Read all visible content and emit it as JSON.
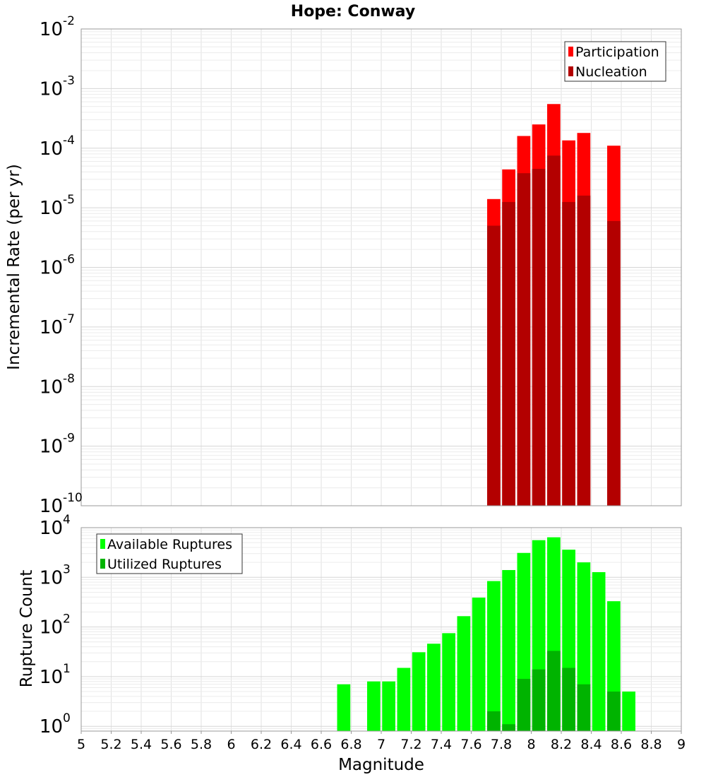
{
  "chart_data": [
    {
      "type": "bar",
      "title": "Hope: Conway",
      "xlabel": "Magnitude",
      "ylabel": "Incremental Rate (per yr)",
      "yscale": "log",
      "ylim": [
        1e-10,
        0.01
      ],
      "xlim": [
        5,
        9
      ],
      "grid": true,
      "legend_placement": "top-right",
      "y_tick_exponents": [
        "-10",
        "-9",
        "-8",
        "-7",
        "-6",
        "-5",
        "-4",
        "-3",
        "-2"
      ],
      "x": [
        7.75,
        7.85,
        7.95,
        8.05,
        8.15,
        8.25,
        8.35,
        8.55
      ],
      "series": [
        {
          "name": "Participation",
          "color": "#ff0000",
          "values": [
            1.4e-05,
            4.4e-05,
            0.00016,
            0.00025,
            0.00055,
            0.000135,
            0.00018,
            0.00011
          ]
        },
        {
          "name": "Nucleation",
          "color": "#b30000",
          "values": [
            5e-06,
            1.25e-05,
            3.8e-05,
            4.5e-05,
            7.5e-05,
            1.25e-05,
            1.6e-05,
            6e-06
          ]
        }
      ]
    },
    {
      "type": "bar",
      "title": "",
      "xlabel": "Magnitude",
      "ylabel": "Rupture Count",
      "yscale": "log",
      "ylim": [
        0.8,
        10000
      ],
      "xlim": [
        5,
        9
      ],
      "grid": true,
      "legend_placement": "top-left",
      "y_tick_exponents": [
        "0",
        "1",
        "2",
        "3",
        "4"
      ],
      "x_tick_labels": [
        "5",
        "5.2",
        "5.4",
        "5.6",
        "5.8",
        "6",
        "6.2",
        "6.4",
        "6.6",
        "6.8",
        "7",
        "7.2",
        "7.4",
        "7.6",
        "7.8",
        "8",
        "8.2",
        "8.4",
        "8.6",
        "8.8",
        "9"
      ],
      "x": [
        6.75,
        6.95,
        7.05,
        7.15,
        7.25,
        7.35,
        7.45,
        7.55,
        7.65,
        7.75,
        7.85,
        7.95,
        8.05,
        8.15,
        8.25,
        8.35,
        8.45,
        8.55,
        8.65
      ],
      "series": [
        {
          "name": "Available Ruptures",
          "color": "#00ff00",
          "values": [
            7,
            8,
            8,
            15,
            31,
            46,
            75,
            165,
            390,
            840,
            1400,
            3100,
            5600,
            6400,
            3600,
            2000,
            1270,
            330,
            5
          ]
        },
        {
          "name": "Utilized Ruptures",
          "color": "#00b300",
          "values": [
            0,
            0,
            0,
            0,
            0,
            0,
            0,
            0,
            0,
            2,
            1.1,
            9,
            14,
            33,
            15,
            7,
            0,
            5,
            0
          ]
        }
      ]
    }
  ]
}
